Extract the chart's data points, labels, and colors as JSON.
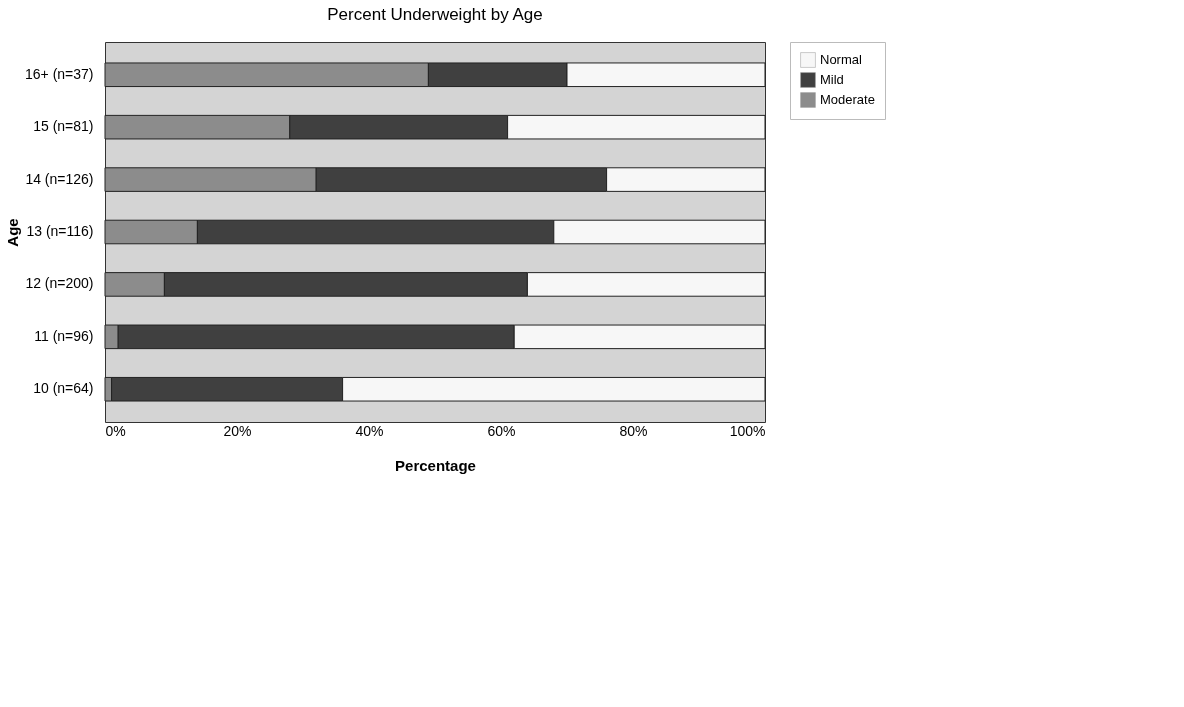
{
  "chart_data": {
    "type": "bar",
    "orientation": "horizontal",
    "stacked": true,
    "title": "Percent Underweight by Age",
    "xlabel": "Percentage",
    "ylabel": "Age",
    "categories": [
      "16+ (n=37)",
      "15 (n=81)",
      "14 (n=126)",
      "13 (n=116)",
      "12 (n=200)",
      "11 (n=96)",
      "10 (n=64)"
    ],
    "series": [
      {
        "name": "Moderate",
        "color": "#8c8c8c",
        "values": [
          49,
          28,
          32,
          14,
          9,
          2,
          1
        ]
      },
      {
        "name": "Mild",
        "color": "#404040",
        "values": [
          21,
          33,
          44,
          54,
          55,
          60,
          35
        ]
      },
      {
        "name": "Normal",
        "color": "#f7f7f7",
        "values": [
          30,
          39,
          24,
          32,
          36,
          38,
          64
        ]
      }
    ],
    "xlim": [
      0,
      100
    ],
    "xticks": [
      {
        "value": 0,
        "label": "0%"
      },
      {
        "value": 20,
        "label": "20%"
      },
      {
        "value": 40,
        "label": "40%"
      },
      {
        "value": 60,
        "label": "60%"
      },
      {
        "value": 80,
        "label": "80%"
      },
      {
        "value": 100,
        "label": "100%"
      }
    ],
    "grid": false,
    "legend": "right"
  }
}
